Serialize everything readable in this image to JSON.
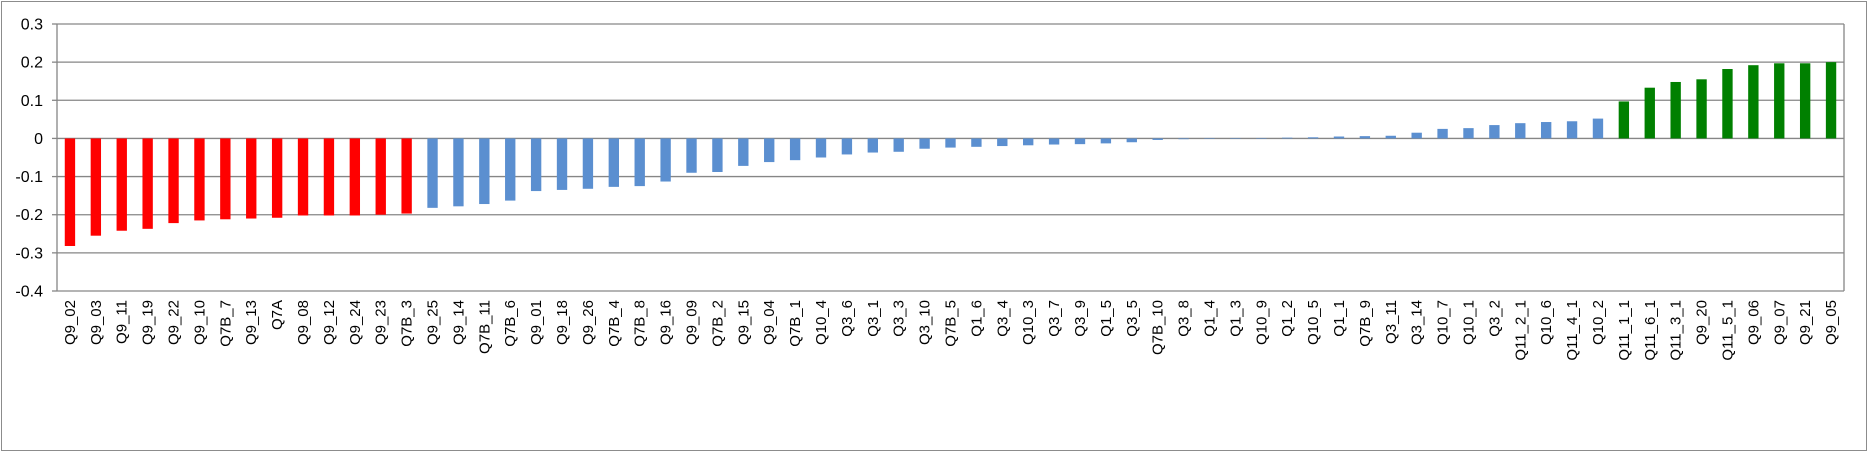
{
  "chart_data": {
    "type": "bar",
    "title": "",
    "xlabel": "",
    "ylabel": "",
    "ylim": [
      -0.4,
      0.3
    ],
    "yticks": [
      0.3,
      0.2,
      0.1,
      0,
      -0.1,
      -0.2,
      -0.3,
      -0.4
    ],
    "ytick_labels": [
      "0.3",
      "0.2",
      "0.1",
      "0",
      "-0.1",
      "-0.2",
      "-0.3",
      "-0.4"
    ],
    "grid": true,
    "legend": "none",
    "colors": {
      "negative_group": "#ff0000",
      "middle_group": "#5b8fd0",
      "positive_group": "#008000",
      "grid": "#868686"
    },
    "categories": [
      "Q9_02",
      "Q9_03",
      "Q9_11",
      "Q9_19",
      "Q9_22",
      "Q9_10",
      "Q7B_7",
      "Q9_13",
      "Q7A",
      "Q9_08",
      "Q9_12",
      "Q9_24",
      "Q9_23",
      "Q7B_3",
      "Q9_25",
      "Q9_14",
      "Q7B_11",
      "Q7B_6",
      "Q9_01",
      "Q9_18",
      "Q9_26",
      "Q7B_4",
      "Q7B_8",
      "Q9_16",
      "Q9_09",
      "Q7B_2",
      "Q9_15",
      "Q9_04",
      "Q7B_1",
      "Q10_4",
      "Q3_6",
      "Q3_1",
      "Q3_3",
      "Q3_10",
      "Q7B_5",
      "Q1_6",
      "Q3_4",
      "Q10_3",
      "Q3_7",
      "Q3_9",
      "Q1_5",
      "Q3_5",
      "Q7B_10",
      "Q3_8",
      "Q1_4",
      "Q1_3",
      "Q10_9",
      "Q1_2",
      "Q10_5",
      "Q1_1",
      "Q7B_9",
      "Q3_11",
      "Q3_14",
      "Q10_7",
      "Q10_1",
      "Q3_2",
      "Q11_2_1",
      "Q10_6",
      "Q11_4_1",
      "Q10_2",
      "Q11_1_1",
      "Q11_6_1",
      "Q11_3_1",
      "Q9_20",
      "Q11_5_1",
      "Q9_06",
      "Q9_07",
      "Q9_21",
      "Q9_05"
    ],
    "values": [
      -0.282,
      -0.255,
      -0.242,
      -0.237,
      -0.222,
      -0.215,
      -0.212,
      -0.21,
      -0.208,
      -0.202,
      -0.202,
      -0.202,
      -0.2,
      -0.197,
      -0.182,
      -0.178,
      -0.172,
      -0.163,
      -0.138,
      -0.135,
      -0.132,
      -0.127,
      -0.125,
      -0.113,
      -0.09,
      -0.088,
      -0.072,
      -0.062,
      -0.057,
      -0.05,
      -0.042,
      -0.037,
      -0.035,
      -0.027,
      -0.024,
      -0.022,
      -0.02,
      -0.018,
      -0.016,
      -0.015,
      -0.013,
      -0.01,
      -0.004,
      -0.002,
      -0.001,
      0.0,
      0.001,
      0.002,
      0.003,
      0.005,
      0.006,
      0.007,
      0.015,
      0.025,
      0.027,
      0.035,
      0.04,
      0.043,
      0.045,
      0.052,
      0.097,
      0.133,
      0.148,
      0.155,
      0.182,
      0.192,
      0.197,
      0.197,
      0.2
    ],
    "groups": [
      "negative_group",
      "negative_group",
      "negative_group",
      "negative_group",
      "negative_group",
      "negative_group",
      "negative_group",
      "negative_group",
      "negative_group",
      "negative_group",
      "negative_group",
      "negative_group",
      "negative_group",
      "negative_group",
      "middle_group",
      "middle_group",
      "middle_group",
      "middle_group",
      "middle_group",
      "middle_group",
      "middle_group",
      "middle_group",
      "middle_group",
      "middle_group",
      "middle_group",
      "middle_group",
      "middle_group",
      "middle_group",
      "middle_group",
      "middle_group",
      "middle_group",
      "middle_group",
      "middle_group",
      "middle_group",
      "middle_group",
      "middle_group",
      "middle_group",
      "middle_group",
      "middle_group",
      "middle_group",
      "middle_group",
      "middle_group",
      "middle_group",
      "middle_group",
      "middle_group",
      "middle_group",
      "middle_group",
      "middle_group",
      "middle_group",
      "middle_group",
      "middle_group",
      "middle_group",
      "middle_group",
      "middle_group",
      "middle_group",
      "middle_group",
      "middle_group",
      "middle_group",
      "middle_group",
      "middle_group",
      "positive_group",
      "positive_group",
      "positive_group",
      "positive_group",
      "positive_group",
      "positive_group",
      "positive_group",
      "positive_group",
      "positive_group"
    ]
  }
}
